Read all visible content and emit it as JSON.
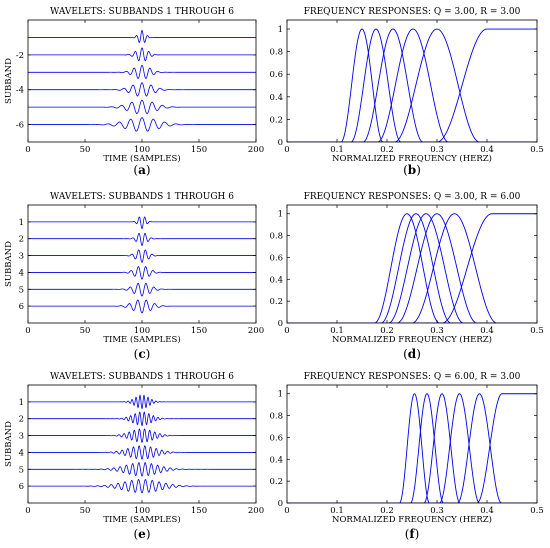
{
  "chart_data": [
    {
      "id": "a",
      "type": "line",
      "panel_label": "a",
      "title": "WAVELETS: SUBBANDS 1 THROUGH 6",
      "xlabel": "TIME (SAMPLES)",
      "ylabel": "SUBBAND",
      "xlim": [
        0,
        200
      ],
      "ylim": [
        -7,
        0
      ],
      "xticks": [
        0,
        50,
        100,
        150,
        200
      ],
      "xtick_labels": [
        "0",
        "50",
        "100",
        "150",
        "200"
      ],
      "yticks": [
        -6,
        -4,
        -2
      ],
      "ytick_labels": [
        "-6",
        "-4",
        "-2"
      ],
      "series": [
        {
          "offset": -1,
          "center": 100,
          "amplitude": 0.4,
          "width": 3,
          "period": 5
        },
        {
          "offset": -2,
          "center": 100,
          "amplitude": 0.4,
          "width": 5,
          "period": 6
        },
        {
          "offset": -3,
          "center": 100,
          "amplitude": 0.4,
          "width": 7,
          "period": 7
        },
        {
          "offset": -4,
          "center": 100,
          "amplitude": 0.4,
          "width": 9,
          "period": 8
        },
        {
          "offset": -5,
          "center": 100,
          "amplitude": 0.4,
          "width": 11,
          "period": 9
        },
        {
          "offset": -6,
          "center": 100,
          "amplitude": 0.4,
          "width": 14,
          "period": 10
        }
      ]
    },
    {
      "id": "b",
      "type": "line",
      "panel_label": "b",
      "title": "FREQUENCY RESPONSES: Q = 3.00, R = 3.00",
      "xlabel": "NORMALIZED FREQUENCY (HERZ)",
      "ylabel": "",
      "xlim": [
        0,
        0.5
      ],
      "ylim": [
        0,
        1.08
      ],
      "xticks": [
        0,
        0.1,
        0.2,
        0.3,
        0.4,
        0.5
      ],
      "xtick_labels": [
        "0",
        "0.1",
        "0.2",
        "0.3",
        "0.4",
        "0.5"
      ],
      "yticks": [
        0,
        0.2,
        0.4,
        0.6,
        0.8,
        1
      ],
      "ytick_labels": [
        "0",
        "0.2",
        "0.4",
        "0.6",
        "0.8",
        "1"
      ],
      "series": [
        {
          "center": 0.15,
          "half_width": 0.042
        },
        {
          "center": 0.178,
          "half_width": 0.05
        },
        {
          "center": 0.212,
          "half_width": 0.06
        },
        {
          "center": 0.252,
          "half_width": 0.071
        },
        {
          "center": 0.3,
          "half_width": 0.085
        },
        {
          "lowpass_rise_start": 0.3,
          "lowpass_rise_end": 0.4
        }
      ]
    },
    {
      "id": "c",
      "type": "line",
      "panel_label": "c",
      "title": "WAVELETS: SUBBANDS 1 THROUGH 6",
      "xlabel": "TIME (SAMPLES)",
      "ylabel": "SUBBAND",
      "xlim": [
        0,
        200
      ],
      "ylim": [
        0,
        7
      ],
      "reversed_y": true,
      "xticks": [
        0,
        50,
        100,
        150,
        200
      ],
      "xtick_labels": [
        "0",
        "50",
        "100",
        "150",
        "200"
      ],
      "yticks": [
        1,
        2,
        3,
        4,
        5,
        6
      ],
      "ytick_labels": [
        "1",
        "2",
        "3",
        "4",
        "5",
        "6"
      ],
      "series": [
        {
          "offset": 1,
          "center": 100,
          "amplitude": 0.4,
          "width": 3,
          "period": 5
        },
        {
          "offset": 2,
          "center": 100,
          "amplitude": 0.4,
          "width": 4,
          "period": 5.5
        },
        {
          "offset": 3,
          "center": 100,
          "amplitude": 0.4,
          "width": 5,
          "period": 6
        },
        {
          "offset": 4,
          "center": 100,
          "amplitude": 0.4,
          "width": 6,
          "period": 6.5
        },
        {
          "offset": 5,
          "center": 100,
          "amplitude": 0.4,
          "width": 7,
          "period": 7
        },
        {
          "offset": 6,
          "center": 100,
          "amplitude": 0.4,
          "width": 8,
          "period": 7.5
        }
      ]
    },
    {
      "id": "d",
      "type": "line",
      "panel_label": "d",
      "title": "FREQUENCY RESPONSES: Q = 3.00, R = 6.00",
      "xlabel": "NORMALIZED FREQUENCY (HERZ)",
      "ylabel": "",
      "xlim": [
        0,
        0.5
      ],
      "ylim": [
        0,
        1.08
      ],
      "xticks": [
        0,
        0.1,
        0.2,
        0.3,
        0.4,
        0.5
      ],
      "xtick_labels": [
        "0",
        "0.1",
        "0.2",
        "0.3",
        "0.4",
        "0.5"
      ],
      "yticks": [
        0,
        0.2,
        0.4,
        0.6,
        0.8,
        1
      ],
      "ytick_labels": [
        "0",
        "0.2",
        "0.4",
        "0.6",
        "0.8",
        "1"
      ],
      "series": [
        {
          "center": 0.24,
          "half_width": 0.065
        },
        {
          "center": 0.258,
          "half_width": 0.07
        },
        {
          "center": 0.278,
          "half_width": 0.075
        },
        {
          "center": 0.3,
          "half_width": 0.08
        },
        {
          "center": 0.335,
          "half_width": 0.085
        },
        {
          "lowpass_rise_start": 0.31,
          "lowpass_rise_end": 0.41
        }
      ]
    },
    {
      "id": "e",
      "type": "line",
      "panel_label": "e",
      "title": "WAVELETS: SUBBANDS 1 THROUGH 6",
      "xlabel": "TIME (SAMPLES)",
      "ylabel": "SUBBAND",
      "xlim": [
        0,
        200
      ],
      "ylim": [
        0,
        7
      ],
      "reversed_y": true,
      "xticks": [
        0,
        50,
        100,
        150,
        200
      ],
      "xtick_labels": [
        "0",
        "50",
        "100",
        "150",
        "200"
      ],
      "yticks": [
        1,
        2,
        3,
        4,
        5,
        6
      ],
      "ytick_labels": [
        "1",
        "2",
        "3",
        "4",
        "5",
        "6"
      ],
      "series": [
        {
          "offset": 1,
          "center": 100,
          "amplitude": 0.4,
          "width": 6,
          "period": 3.5
        },
        {
          "offset": 2,
          "center": 100,
          "amplitude": 0.4,
          "width": 8,
          "period": 4
        },
        {
          "offset": 3,
          "center": 100,
          "amplitude": 0.4,
          "width": 10,
          "period": 4.5
        },
        {
          "offset": 4,
          "center": 100,
          "amplitude": 0.4,
          "width": 12,
          "period": 5
        },
        {
          "offset": 5,
          "center": 100,
          "amplitude": 0.4,
          "width": 14,
          "period": 5.5
        },
        {
          "offset": 6,
          "center": 100,
          "amplitude": 0.4,
          "width": 16,
          "period": 6
        }
      ]
    },
    {
      "id": "f",
      "type": "line",
      "panel_label": "f",
      "title": "FREQUENCY RESPONSES: Q = 6.00, R = 3.00",
      "xlabel": "NORMALIZED FREQUENCY (HERZ)",
      "ylabel": "",
      "xlim": [
        0,
        0.5
      ],
      "ylim": [
        0,
        1.08
      ],
      "xticks": [
        0,
        0.1,
        0.2,
        0.3,
        0.4,
        0.5
      ],
      "xtick_labels": [
        "0",
        "0.1",
        "0.2",
        "0.3",
        "0.4",
        "0.5"
      ],
      "yticks": [
        0,
        0.2,
        0.4,
        0.6,
        0.8,
        1
      ],
      "ytick_labels": [
        "0",
        "0.2",
        "0.4",
        "0.6",
        "0.8",
        "1"
      ],
      "series": [
        {
          "center": 0.255,
          "half_width": 0.03
        },
        {
          "center": 0.28,
          "half_width": 0.033
        },
        {
          "center": 0.31,
          "half_width": 0.036
        },
        {
          "center": 0.345,
          "half_width": 0.04
        },
        {
          "center": 0.385,
          "half_width": 0.044
        },
        {
          "lowpass_rise_start": 0.38,
          "lowpass_rise_end": 0.43
        }
      ]
    }
  ],
  "line_color": "#0000ee"
}
